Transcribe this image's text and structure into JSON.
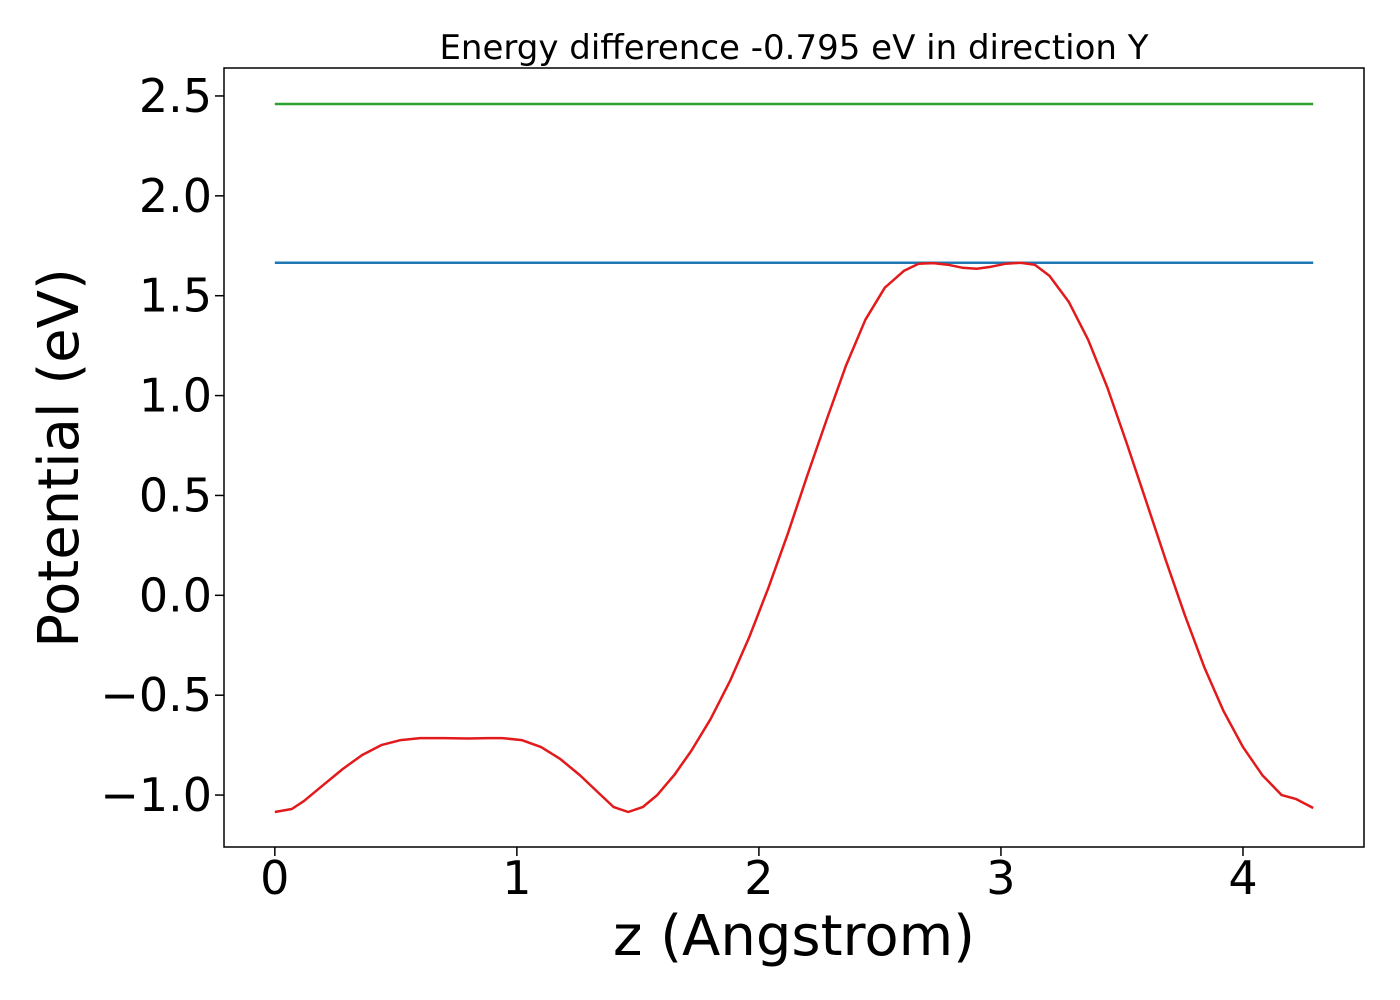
{
  "chart_data": {
    "type": "line",
    "title": "Energy difference -0.795 eV in direction Y",
    "xlabel": "z (Angstrom)",
    "ylabel": "Potential (eV)",
    "xlim": [
      -0.21,
      4.5
    ],
    "ylim": [
      -1.26,
      2.64
    ],
    "x_ticks": [
      0,
      1,
      2,
      3,
      4
    ],
    "x_tick_labels": [
      "0",
      "1",
      "2",
      "3",
      "4"
    ],
    "y_ticks": [
      -1.0,
      -0.5,
      0.0,
      0.5,
      1.0,
      1.5,
      2.0,
      2.5
    ],
    "y_tick_labels": [
      "−1.0",
      "−0.5",
      "0.0",
      "0.5",
      "1.0",
      "1.5",
      "2.0",
      "2.5"
    ],
    "grid": false,
    "series": [
      {
        "color": "#2ca02c",
        "x": [
          0,
          4.29
        ],
        "y": [
          2.46,
          2.46
        ]
      },
      {
        "color": "#1f77b4",
        "x": [
          0,
          4.29
        ],
        "y": [
          1.665,
          1.665
        ]
      },
      {
        "color": "#e31a1c",
        "x": [
          0.0,
          0.07,
          0.12,
          0.2,
          0.28,
          0.36,
          0.44,
          0.52,
          0.6,
          0.7,
          0.8,
          0.88,
          0.94,
          1.02,
          1.1,
          1.18,
          1.26,
          1.33,
          1.4,
          1.46,
          1.52,
          1.58,
          1.65,
          1.72,
          1.8,
          1.88,
          1.96,
          2.04,
          2.12,
          2.2,
          2.28,
          2.36,
          2.44,
          2.52,
          2.6,
          2.66,
          2.72,
          2.78,
          2.84,
          2.9,
          2.96,
          3.02,
          3.08,
          3.14,
          3.2,
          3.28,
          3.36,
          3.44,
          3.52,
          3.6,
          3.68,
          3.76,
          3.84,
          3.92,
          4.0,
          4.08,
          4.16,
          4.22,
          4.29
        ],
        "y": [
          -1.085,
          -1.07,
          -1.03,
          -0.95,
          -0.87,
          -0.8,
          -0.75,
          -0.725,
          -0.715,
          -0.715,
          -0.717,
          -0.715,
          -0.715,
          -0.725,
          -0.76,
          -0.82,
          -0.9,
          -0.98,
          -1.06,
          -1.085,
          -1.06,
          -1.0,
          -0.9,
          -0.78,
          -0.62,
          -0.43,
          -0.21,
          0.04,
          0.31,
          0.6,
          0.88,
          1.15,
          1.38,
          1.54,
          1.625,
          1.66,
          1.663,
          1.655,
          1.64,
          1.635,
          1.645,
          1.66,
          1.665,
          1.655,
          1.6,
          1.47,
          1.28,
          1.04,
          0.76,
          0.47,
          0.18,
          -0.1,
          -0.36,
          -0.58,
          -0.76,
          -0.9,
          -1.0,
          -1.02,
          -1.065
        ]
      }
    ]
  }
}
